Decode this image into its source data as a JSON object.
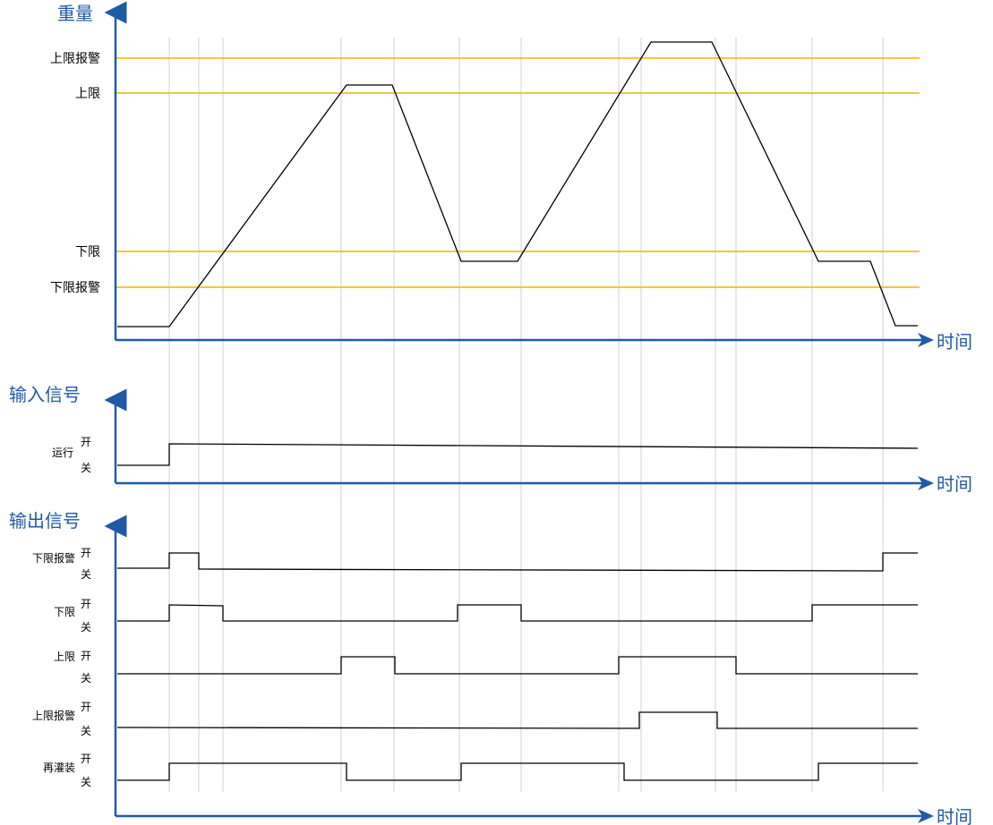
{
  "colors": {
    "axis": "#1f5aa6",
    "threshold": "#f0b400",
    "grid": "#d0d0d0",
    "trace": "#000000"
  },
  "weight_chart": {
    "y_label": "重量",
    "x_label": "时间",
    "levels": [
      {
        "label": "上限报警"
      },
      {
        "label": "上限"
      },
      {
        "label": "下限"
      },
      {
        "label": "下限报警"
      }
    ]
  },
  "input_chart": {
    "title": "输入信号",
    "x_label": "时间",
    "signals": [
      {
        "name": "运行",
        "on": "开",
        "off": "关"
      }
    ]
  },
  "output_chart": {
    "title": "输出信号",
    "x_label": "时间",
    "signals": [
      {
        "name": "下限报警",
        "on": "开",
        "off": "关"
      },
      {
        "name": "下限",
        "on": "开",
        "off": "关"
      },
      {
        "name": "上限",
        "on": "开",
        "off": "关"
      },
      {
        "name": "上限报警",
        "on": "开",
        "off": "关"
      },
      {
        "name": "再灌装",
        "on": "开",
        "off": "关"
      }
    ]
  }
}
